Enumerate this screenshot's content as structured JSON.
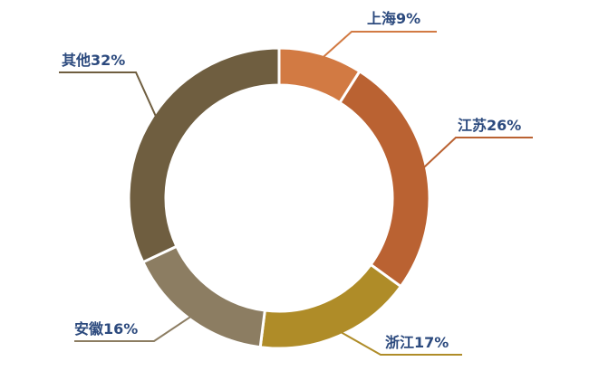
{
  "chart_data": {
    "type": "pie",
    "donut": true,
    "title": "",
    "categories": [
      "上海",
      "江苏",
      "浙江",
      "安徽",
      "其他"
    ],
    "values": [
      9,
      26,
      17,
      16,
      32
    ],
    "labels": [
      "上海9%",
      "江苏26%",
      "浙江17%",
      "安徽16%",
      "其他32%"
    ],
    "colors": [
      "#D27A43",
      "#BA6232",
      "#AF8C28",
      "#8C7D62",
      "#6F5E40"
    ],
    "start": "top, clockwise",
    "label_color": "#2C4A7E"
  }
}
